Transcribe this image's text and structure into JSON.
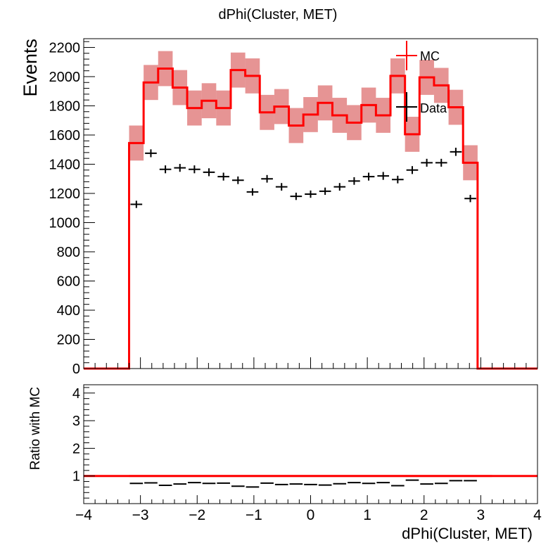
{
  "title": "dPhi(Cluster, MET)",
  "colors": {
    "mc": "#ff0000",
    "mc_band": "#d23c3c",
    "data": "#000000",
    "axis": "#000000"
  },
  "chart_data": [
    {
      "type": "histogram",
      "title": "dPhi(Cluster, MET)",
      "xlabel": "",
      "ylabel": "Events",
      "xlim": [
        -4,
        4
      ],
      "ylim": [
        0,
        2260
      ],
      "yticks": [
        0,
        200,
        400,
        600,
        800,
        1000,
        1200,
        1400,
        1600,
        1800,
        2000,
        2200
      ],
      "bin_edges": [
        -3.2,
        -2.944,
        -2.688,
        -2.432,
        -2.176,
        -1.92,
        -1.664,
        -1.408,
        -1.152,
        -0.896,
        -0.64,
        -0.384,
        -0.128,
        0.128,
        0.384,
        0.64,
        0.896,
        1.152,
        1.408,
        1.664,
        1.92,
        2.176,
        2.432,
        2.688,
        2.944,
        3.2
      ],
      "legend": {
        "position": "top-right",
        "entries": [
          "MC",
          "Data"
        ]
      },
      "series": [
        {
          "name": "MC",
          "style": "step",
          "values": [
            1545,
            1960,
            2055,
            1925,
            1785,
            1835,
            1785,
            2045,
            2005,
            1755,
            1795,
            1665,
            1740,
            1820,
            1735,
            1685,
            1805,
            1735,
            2005,
            1605,
            1995,
            1940,
            1790,
            1410,
            0
          ],
          "band_halfwidth": 120
        },
        {
          "name": "Data",
          "style": "points",
          "values": [
            1125,
            1475,
            1365,
            1375,
            1365,
            1345,
            1315,
            1290,
            1210,
            1300,
            1245,
            1180,
            1195,
            1215,
            1245,
            1285,
            1315,
            1320,
            1295,
            1360,
            1410,
            1410,
            1485,
            1165,
            0
          ],
          "errors": [
            25,
            27,
            27,
            27,
            27,
            27,
            27,
            26,
            25,
            26,
            26,
            25,
            25,
            25,
            26,
            26,
            27,
            27,
            26,
            27,
            27,
            27,
            28,
            25,
            0
          ]
        }
      ]
    },
    {
      "type": "ratio",
      "xlabel": "dPhi(Cluster, MET)",
      "ylabel": "Ratio with MC",
      "xlim": [
        -4,
        4
      ],
      "ylim": [
        0,
        4.3
      ],
      "yticks": [
        1,
        2,
        3,
        4
      ],
      "xticks": [
        -4,
        -3,
        -2,
        -1,
        0,
        1,
        2,
        3,
        4
      ],
      "xtick_labels": [
        "−4",
        "−3",
        "−2",
        "−1",
        "0",
        "1",
        "2",
        "3",
        "4"
      ],
      "reference_line": 1,
      "band_halfwidth": 0.04,
      "series": [
        {
          "name": "Ratio",
          "values": [
            0.73,
            0.75,
            0.66,
            0.71,
            0.76,
            0.73,
            0.74,
            0.63,
            0.6,
            0.74,
            0.69,
            0.71,
            0.69,
            0.67,
            0.72,
            0.76,
            0.73,
            0.76,
            0.65,
            0.85,
            0.71,
            0.73,
            0.83,
            0.83
          ]
        }
      ]
    }
  ]
}
